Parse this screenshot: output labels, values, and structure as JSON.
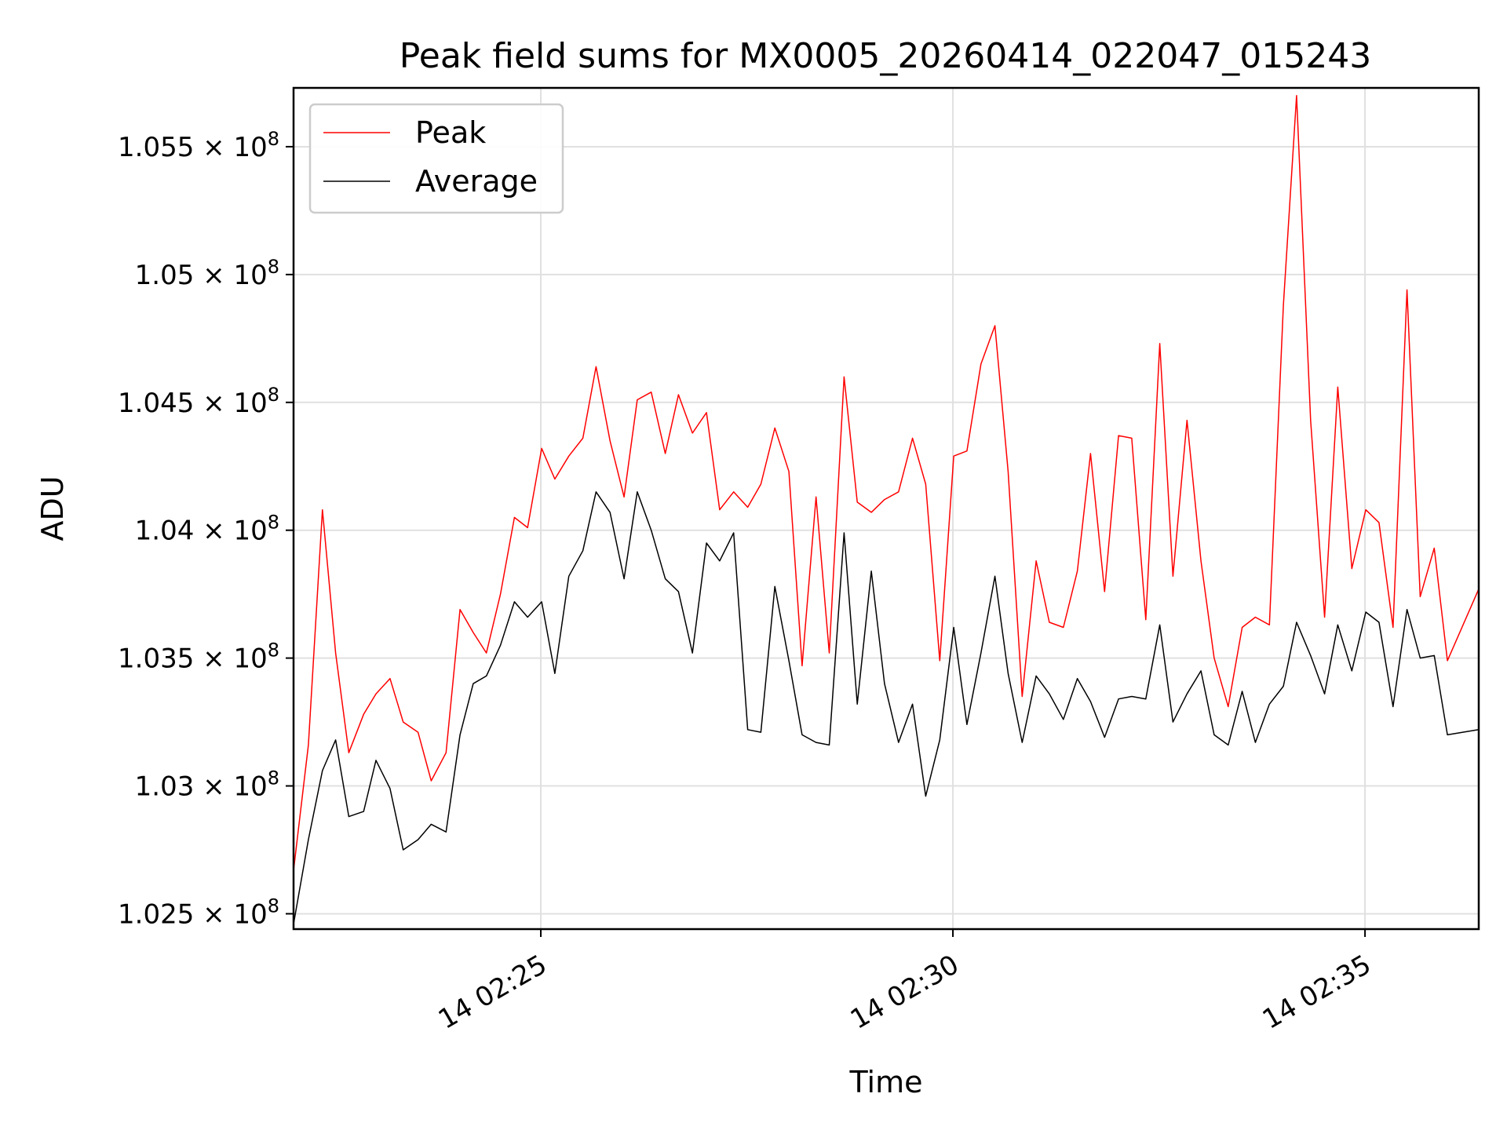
{
  "chart_data": {
    "type": "line",
    "title": "Peak field sums for MX0005_20260414_022047_015243",
    "xlabel": "Time",
    "ylabel": "ADU",
    "x_unit": "minutes after 02:20:00 on the 14th",
    "xlim": [
      2.0,
      16.38
    ],
    "ylim": [
      102440000,
      105730000
    ],
    "x_ticks": [
      {
        "value": 5.0,
        "label": "14 02:25"
      },
      {
        "value": 10.0,
        "label": "14 02:30"
      },
      {
        "value": 15.0,
        "label": "14 02:35"
      }
    ],
    "y_ticks": [
      {
        "value": 102500000,
        "mantissa": "1.025",
        "exponent": "8"
      },
      {
        "value": 103000000,
        "mantissa": "1.03",
        "exponent": "8"
      },
      {
        "value": 103500000,
        "mantissa": "1.035",
        "exponent": "8"
      },
      {
        "value": 104000000,
        "mantissa": "1.04",
        "exponent": "8"
      },
      {
        "value": 104500000,
        "mantissa": "1.045",
        "exponent": "8"
      },
      {
        "value": 105000000,
        "mantissa": "1.05",
        "exponent": "8"
      },
      {
        "value": 105500000,
        "mantissa": "1.055",
        "exponent": "8"
      }
    ],
    "y_tick_prefix": "× 10",
    "grid": true,
    "legend_position": "top-left",
    "x": [
      2.0,
      2.18,
      2.35,
      2.51,
      2.67,
      2.85,
      3.0,
      3.17,
      3.33,
      3.51,
      3.67,
      3.85,
      4.02,
      4.18,
      4.34,
      4.51,
      4.68,
      4.84,
      5.01,
      5.17,
      5.34,
      5.51,
      5.67,
      5.84,
      6.01,
      6.17,
      6.34,
      6.51,
      6.67,
      6.84,
      7.01,
      7.17,
      7.34,
      7.51,
      7.67,
      7.84,
      8.01,
      8.17,
      8.34,
      8.5,
      8.68,
      8.84,
      9.01,
      9.17,
      9.34,
      9.51,
      9.67,
      9.84,
      10.01,
      10.17,
      10.34,
      10.51,
      10.67,
      10.84,
      11.01,
      11.17,
      11.34,
      11.51,
      11.67,
      11.84,
      12.01,
      12.17,
      12.34,
      12.51,
      12.67,
      12.84,
      13.01,
      13.17,
      13.34,
      13.51,
      13.67,
      13.84,
      14.01,
      14.17,
      14.34,
      14.51,
      14.67,
      14.84,
      15.01,
      15.17,
      15.34,
      15.51,
      15.67,
      15.84,
      16.0,
      16.38
    ],
    "series": [
      {
        "name": "Peak",
        "color": "#ff0000",
        "values": [
          102670000,
          103160000,
          104080000,
          103520000,
          103130000,
          103280000,
          103360000,
          103420000,
          103250000,
          103210000,
          103020000,
          103130000,
          103690000,
          103600000,
          103520000,
          103750000,
          104050000,
          104010000,
          104320000,
          104200000,
          104290000,
          104360000,
          104640000,
          104350000,
          104130000,
          104510000,
          104540000,
          104300000,
          104530000,
          104380000,
          104460000,
          104080000,
          104150000,
          104090000,
          104180000,
          104400000,
          104230000,
          103470000,
          104130000,
          103520000,
          104600000,
          104110000,
          104070000,
          104120000,
          104150000,
          104360000,
          104180000,
          103490000,
          104290000,
          104310000,
          104650000,
          104800000,
          104230000,
          103350000,
          103880000,
          103640000,
          103620000,
          103840000,
          104300000,
          103760000,
          104370000,
          104360000,
          103650000,
          104730000,
          103820000,
          104430000,
          103880000,
          103500000,
          103310000,
          103620000,
          103660000,
          103630000,
          104880000,
          105700000,
          104430000,
          103660000,
          104560000,
          103850000,
          104080000,
          104030000,
          103620000,
          104940000,
          103740000,
          103930000,
          103490000,
          103770000
        ]
      },
      {
        "name": "Average",
        "color": "#000000",
        "values": [
          102460000,
          102790000,
          103060000,
          103180000,
          102880000,
          102900000,
          103100000,
          102990000,
          102750000,
          102790000,
          102850000,
          102820000,
          103200000,
          103400000,
          103430000,
          103550000,
          103720000,
          103660000,
          103720000,
          103440000,
          103820000,
          103920000,
          104150000,
          104070000,
          103810000,
          104150000,
          104000000,
          103810000,
          103760000,
          103520000,
          103950000,
          103880000,
          103990000,
          103220000,
          103210000,
          103780000,
          103490000,
          103200000,
          103170000,
          103160000,
          103990000,
          103320000,
          103840000,
          103400000,
          103170000,
          103320000,
          102960000,
          103180000,
          103620000,
          103240000,
          103520000,
          103820000,
          103440000,
          103170000,
          103430000,
          103360000,
          103260000,
          103420000,
          103330000,
          103190000,
          103340000,
          103350000,
          103340000,
          103630000,
          103250000,
          103360000,
          103450000,
          103200000,
          103160000,
          103370000,
          103170000,
          103320000,
          103390000,
          103640000,
          103510000,
          103360000,
          103630000,
          103450000,
          103680000,
          103640000,
          103310000,
          103690000,
          103500000,
          103510000,
          103200000,
          103220000
        ]
      }
    ]
  }
}
